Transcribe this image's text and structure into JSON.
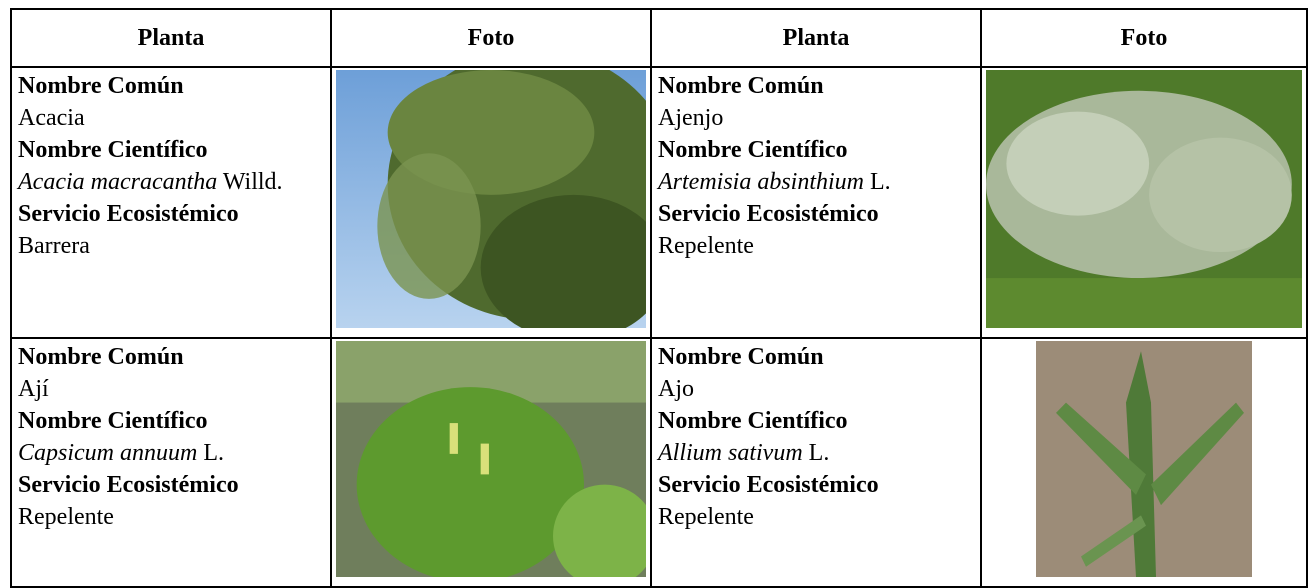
{
  "table": {
    "headers": [
      "Planta",
      "Foto",
      "Planta",
      "Foto"
    ],
    "rows": [
      [
        {
          "common_label": "Nombre Común",
          "common": "Acacia",
          "scientific_label": "Nombre Científico",
          "scientific_name": "Acacia macracantha",
          "scientific_author": "Willd.",
          "service_label": "Servicio Ecosistémico",
          "service": "Barrera"
        },
        {
          "common_label": "Nombre Común",
          "common": "Ajenjo",
          "scientific_label": "Nombre Científico",
          "scientific_name": "Artemisia absinthium",
          "scientific_author": "L.",
          "service_label": "Servicio Ecosistémico",
          "service": "Repelente"
        }
      ],
      [
        {
          "common_label": "Nombre Común",
          "common": "Ají",
          "scientific_label": "Nombre Científico",
          "scientific_name": "Capsicum annuum",
          "scientific_author": "L.",
          "service_label": "Servicio Ecosistémico",
          "service": "Repelente"
        },
        {
          "common_label": "Nombre Común",
          "common": "Ajo",
          "scientific_label": "Nombre Científico",
          "scientific_name": "Allium sativum",
          "scientific_author": "L.",
          "service_label": "Servicio Ecosistémico",
          "service": "Repelente"
        }
      ]
    ]
  }
}
